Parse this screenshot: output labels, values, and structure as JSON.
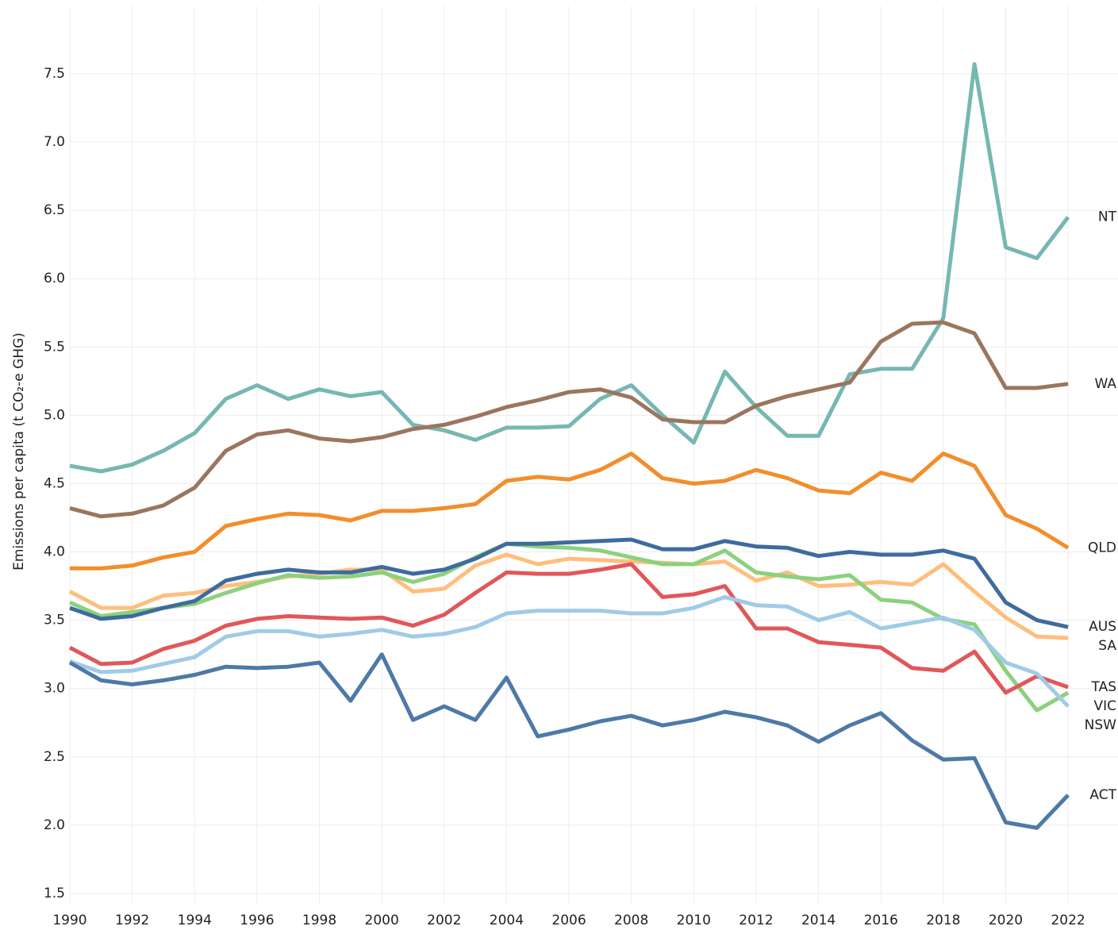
{
  "chart_data": {
    "type": "line",
    "y_label": "Emissions per capita (t CO₂-e GHG)",
    "x": [
      1990,
      1991,
      1992,
      1993,
      1994,
      1995,
      1996,
      1997,
      1998,
      1999,
      2000,
      2001,
      2002,
      2003,
      2004,
      2005,
      2006,
      2007,
      2008,
      2009,
      2010,
      2011,
      2012,
      2013,
      2014,
      2015,
      2016,
      2017,
      2018,
      2019,
      2020,
      2021,
      2022
    ],
    "xlim": [
      1990,
      2023.6
    ],
    "xticks": [
      1990,
      1992,
      1994,
      1996,
      1998,
      2000,
      2002,
      2004,
      2006,
      2008,
      2010,
      2012,
      2014,
      2016,
      2018,
      2020,
      2022
    ],
    "ylim": [
      1.43,
      8.04
    ],
    "yticks": [
      1.5,
      {
        "value": 2.0,
        "label": "2.0"
      },
      2.5,
      {
        "value": 3.0,
        "label": "3.0"
      },
      3.5,
      {
        "value": 4.0,
        "label": "4.0"
      },
      4.5,
      {
        "value": 5.0,
        "label": "5.0"
      },
      5.5,
      {
        "value": 6.0,
        "label": "6.0"
      },
      6.5,
      {
        "value": 7.0,
        "label": "7.0"
      },
      7.5
    ],
    "grid": true,
    "series": [
      {
        "name": "NT",
        "color": "#76b7b2",
        "values": [
          4.63,
          4.59,
          4.64,
          4.74,
          4.87,
          5.12,
          5.22,
          5.12,
          5.19,
          5.14,
          5.17,
          4.93,
          4.89,
          4.82,
          4.91,
          4.91,
          4.92,
          5.12,
          5.22,
          5.0,
          4.8,
          5.32,
          5.06,
          4.85,
          4.85,
          5.3,
          5.34,
          5.34,
          5.71,
          7.57,
          6.23,
          6.15,
          6.45
        ]
      },
      {
        "name": "WA",
        "color": "#9c755f",
        "values": [
          4.32,
          4.26,
          4.28,
          4.34,
          4.47,
          4.74,
          4.86,
          4.89,
          4.83,
          4.81,
          4.84,
          4.9,
          4.93,
          4.99,
          5.06,
          5.11,
          5.17,
          5.19,
          5.13,
          4.97,
          4.95,
          4.95,
          5.07,
          5.14,
          5.19,
          5.24,
          5.54,
          5.67,
          5.68,
          5.6,
          5.2,
          5.2,
          5.23
        ]
      },
      {
        "name": "QLD",
        "color": "#f28e2b",
        "values": [
          3.88,
          3.88,
          3.9,
          3.96,
          4.0,
          4.19,
          4.24,
          4.28,
          4.27,
          4.23,
          4.3,
          4.3,
          4.32,
          4.35,
          4.52,
          4.55,
          4.53,
          4.6,
          4.72,
          4.54,
          4.5,
          4.52,
          4.6,
          4.54,
          4.45,
          4.43,
          4.58,
          4.52,
          4.72,
          4.63,
          4.27,
          4.17,
          4.03
        ]
      },
      {
        "name": "SA",
        "color": "#ffbe7d",
        "values": [
          3.71,
          3.59,
          3.59,
          3.68,
          3.7,
          3.75,
          3.78,
          3.82,
          3.84,
          3.87,
          3.87,
          3.71,
          3.73,
          3.9,
          3.98,
          3.91,
          3.95,
          3.94,
          3.93,
          3.92,
          3.91,
          3.93,
          3.79,
          3.85,
          3.75,
          3.76,
          3.78,
          3.76,
          3.91,
          3.71,
          3.52,
          3.38,
          3.37
        ]
      },
      {
        "name": "VIC",
        "color": "#8cd17d",
        "values": [
          3.63,
          3.53,
          3.56,
          3.59,
          3.62,
          3.7,
          3.77,
          3.83,
          3.81,
          3.82,
          3.85,
          3.78,
          3.84,
          3.96,
          4.06,
          4.04,
          4.03,
          4.01,
          3.96,
          3.91,
          3.91,
          4.01,
          3.85,
          3.82,
          3.8,
          3.83,
          3.65,
          3.63,
          3.51,
          3.47,
          3.13,
          2.84,
          2.97
        ]
      },
      {
        "name": "AUS",
        "color": "#3f6b9e",
        "values": [
          3.59,
          3.51,
          3.53,
          3.59,
          3.64,
          3.79,
          3.84,
          3.87,
          3.85,
          3.85,
          3.89,
          3.84,
          3.87,
          3.95,
          4.06,
          4.06,
          4.07,
          4.08,
          4.09,
          4.02,
          4.02,
          4.08,
          4.04,
          4.03,
          3.97,
          4.0,
          3.98,
          3.98,
          4.01,
          3.95,
          3.63,
          3.5,
          3.45
        ]
      },
      {
        "name": "TAS",
        "color": "#e15759",
        "values": [
          3.3,
          3.18,
          3.19,
          3.29,
          3.35,
          3.46,
          3.51,
          3.53,
          3.52,
          3.51,
          3.52,
          3.46,
          3.54,
          3.7,
          3.85,
          3.84,
          3.84,
          3.87,
          3.91,
          3.67,
          3.69,
          3.75,
          3.44,
          3.44,
          3.34,
          3.32,
          3.3,
          3.15,
          3.13,
          3.27,
          2.97,
          3.09,
          3.01
        ]
      },
      {
        "name": "NSW",
        "color": "#a0cbe8",
        "values": [
          3.2,
          3.12,
          3.13,
          3.18,
          3.23,
          3.38,
          3.42,
          3.42,
          3.38,
          3.4,
          3.43,
          3.38,
          3.4,
          3.45,
          3.55,
          3.57,
          3.57,
          3.57,
          3.55,
          3.55,
          3.59,
          3.67,
          3.61,
          3.6,
          3.5,
          3.56,
          3.44,
          3.48,
          3.52,
          3.43,
          3.19,
          3.11,
          2.87
        ]
      },
      {
        "name": "ACT",
        "color": "#4e79a7",
        "values": [
          3.19,
          3.06,
          3.03,
          3.06,
          3.1,
          3.16,
          3.15,
          3.16,
          3.19,
          2.91,
          3.25,
          2.77,
          2.87,
          2.77,
          3.08,
          2.65,
          2.7,
          2.76,
          2.8,
          2.73,
          2.77,
          2.83,
          2.79,
          2.73,
          2.61,
          2.73,
          2.82,
          2.62,
          2.48,
          2.49,
          2.02,
          1.98,
          2.22
        ]
      }
    ]
  }
}
